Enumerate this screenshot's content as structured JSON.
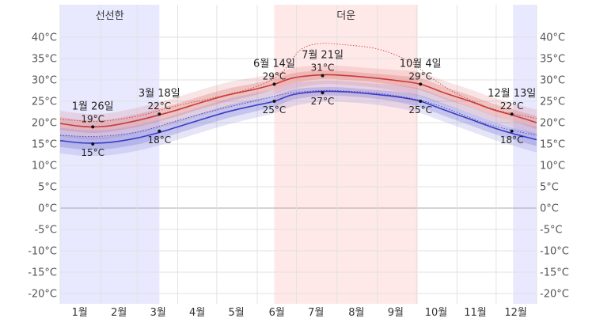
{
  "chart_data": {
    "type": "area",
    "title": "",
    "xlabel": "",
    "ylabel": "",
    "ylim": [
      -22,
      43
    ],
    "y_ticks": [
      -20,
      -15,
      -10,
      -5,
      0,
      5,
      10,
      15,
      20,
      25,
      30,
      35,
      40
    ],
    "y_unit": "°C",
    "months": [
      "1월",
      "2월",
      "3월",
      "4월",
      "5월",
      "6월",
      "7월",
      "8월",
      "9월",
      "10월",
      "11월",
      "12월"
    ],
    "seasons": [
      {
        "label": "선선한",
        "start_day": 1,
        "end_day": 77,
        "color": "#e8e8ff"
      },
      {
        "label": "더운",
        "start_day": 165,
        "end_day": 275,
        "color": "#ffe8e8"
      },
      {
        "label": "",
        "start_day": 348,
        "end_day": 366,
        "color": "#e8e8ff"
      }
    ],
    "x": [
      1,
      15,
      26,
      40,
      60,
      77,
      91,
      110,
      130,
      150,
      165,
      180,
      202,
      220,
      240,
      260,
      277,
      295,
      315,
      333,
      347,
      366
    ],
    "series": [
      {
        "key": "high",
        "color": "#c93a3a",
        "band_color": "#d76b6b",
        "values": [
          19.8,
          19.2,
          19.0,
          19.3,
          20.5,
          21.8,
          23.0,
          24.8,
          26.5,
          27.8,
          29.0,
          30.5,
          31.2,
          31.0,
          30.5,
          29.8,
          29.0,
          27.0,
          25.0,
          23.0,
          21.8,
          20.0
        ],
        "inner_low": [
          18.3,
          17.8,
          17.6,
          17.9,
          19.0,
          20.3,
          21.5,
          23.3,
          25.0,
          26.4,
          27.8,
          29.3,
          30.2,
          30.0,
          29.5,
          28.6,
          27.6,
          25.6,
          23.6,
          21.6,
          20.4,
          18.5
        ],
        "inner_high": [
          21.3,
          20.7,
          20.5,
          20.8,
          22.0,
          23.3,
          24.5,
          26.3,
          28.0,
          29.2,
          30.2,
          31.6,
          32.2,
          32.0,
          31.5,
          31.0,
          30.4,
          28.4,
          26.4,
          24.4,
          23.2,
          21.5
        ],
        "outer_low": [
          16.8,
          16.2,
          16.0,
          16.3,
          17.5,
          18.8,
          20.0,
          21.8,
          23.5,
          25.0,
          26.5,
          28.0,
          29.0,
          28.8,
          28.3,
          27.3,
          26.2,
          24.2,
          22.2,
          20.2,
          19.0,
          17.0
        ],
        "outer_high": [
          22.8,
          22.2,
          22.0,
          22.3,
          23.5,
          24.8,
          26.0,
          27.8,
          29.5,
          30.6,
          31.5,
          32.8,
          33.4,
          33.2,
          32.7,
          32.3,
          31.8,
          29.8,
          27.8,
          25.8,
          24.6,
          23.0
        ]
      },
      {
        "key": "low",
        "color": "#3b3bc4",
        "band_color": "#6f6fd4",
        "values": [
          15.8,
          15.3,
          15.2,
          15.4,
          16.4,
          17.7,
          19.0,
          20.8,
          22.6,
          24.0,
          25.0,
          26.6,
          27.3,
          27.2,
          26.7,
          26.0,
          25.0,
          23.0,
          20.8,
          18.8,
          17.5,
          16.0
        ],
        "inner_low": [
          14.3,
          13.8,
          13.7,
          13.9,
          14.9,
          16.2,
          17.5,
          19.3,
          21.1,
          22.6,
          23.7,
          25.4,
          26.3,
          26.2,
          25.7,
          24.8,
          23.6,
          21.6,
          19.4,
          17.4,
          16.1,
          14.5
        ],
        "inner_high": [
          17.3,
          16.8,
          16.7,
          16.9,
          17.9,
          19.2,
          20.5,
          22.3,
          24.1,
          25.4,
          26.3,
          27.8,
          28.3,
          28.2,
          27.7,
          27.2,
          26.4,
          24.4,
          22.2,
          20.2,
          18.9,
          17.5
        ],
        "outer_low": [
          12.8,
          12.3,
          12.2,
          12.4,
          13.4,
          14.7,
          16.0,
          17.8,
          19.6,
          21.1,
          22.2,
          23.9,
          24.9,
          24.8,
          24.3,
          23.4,
          22.2,
          20.2,
          18.0,
          16.0,
          14.7,
          13.0
        ],
        "outer_high": [
          18.8,
          18.3,
          18.2,
          18.4,
          19.4,
          20.7,
          22.0,
          23.8,
          25.6,
          26.9,
          27.8,
          29.3,
          29.8,
          29.7,
          29.2,
          28.7,
          27.9,
          25.9,
          23.7,
          21.7,
          20.4,
          19.0
        ]
      }
    ],
    "dotted_upper": {
      "color": "#c93a3a",
      "x": [
        1,
        30,
        60,
        91,
        121,
        152,
        170,
        185,
        200,
        220,
        240,
        255,
        270,
        290,
        310,
        335,
        366
      ],
      "values": [
        20.8,
        20.3,
        21.5,
        24.0,
        26.0,
        28.5,
        31.5,
        37.0,
        38.5,
        38.2,
        37.5,
        36.2,
        34.0,
        29.5,
        26.0,
        23.0,
        21.0
      ]
    },
    "dotted_lower": {
      "color": "#3b3bc4",
      "x": [
        1,
        30,
        60,
        91,
        121,
        152,
        175,
        200,
        220,
        240,
        260,
        280,
        300,
        330,
        366
      ],
      "values": [
        17.0,
        16.8,
        17.8,
        20.5,
        23.0,
        25.2,
        26.8,
        27.5,
        27.4,
        27.0,
        26.2,
        25.0,
        23.0,
        19.5,
        17.0
      ]
    },
    "annotations": [
      {
        "day": 26,
        "date": "1월 26일",
        "high": "19°C",
        "low": "15°C",
        "high_value": 19,
        "low_value": 15
      },
      {
        "day": 77,
        "date": "3월 18일",
        "high": "22°C",
        "low": "18°C",
        "high_value": 22,
        "low_value": 18
      },
      {
        "day": 165,
        "date": "6월 14일",
        "high": "29°C",
        "low": "25°C",
        "high_value": 29,
        "low_value": 25
      },
      {
        "day": 202,
        "date": "7월 21일",
        "high": "31°C",
        "low": "27°C",
        "high_value": 31,
        "low_value": 27
      },
      {
        "day": 277,
        "date": "10월 4일",
        "high": "29°C",
        "low": "25°C",
        "high_value": 29,
        "low_value": 25
      },
      {
        "day": 347,
        "date": "12월 13일",
        "high": "22°C",
        "low": "18°C",
        "high_value": 22,
        "low_value": 18
      }
    ],
    "grid": true
  }
}
